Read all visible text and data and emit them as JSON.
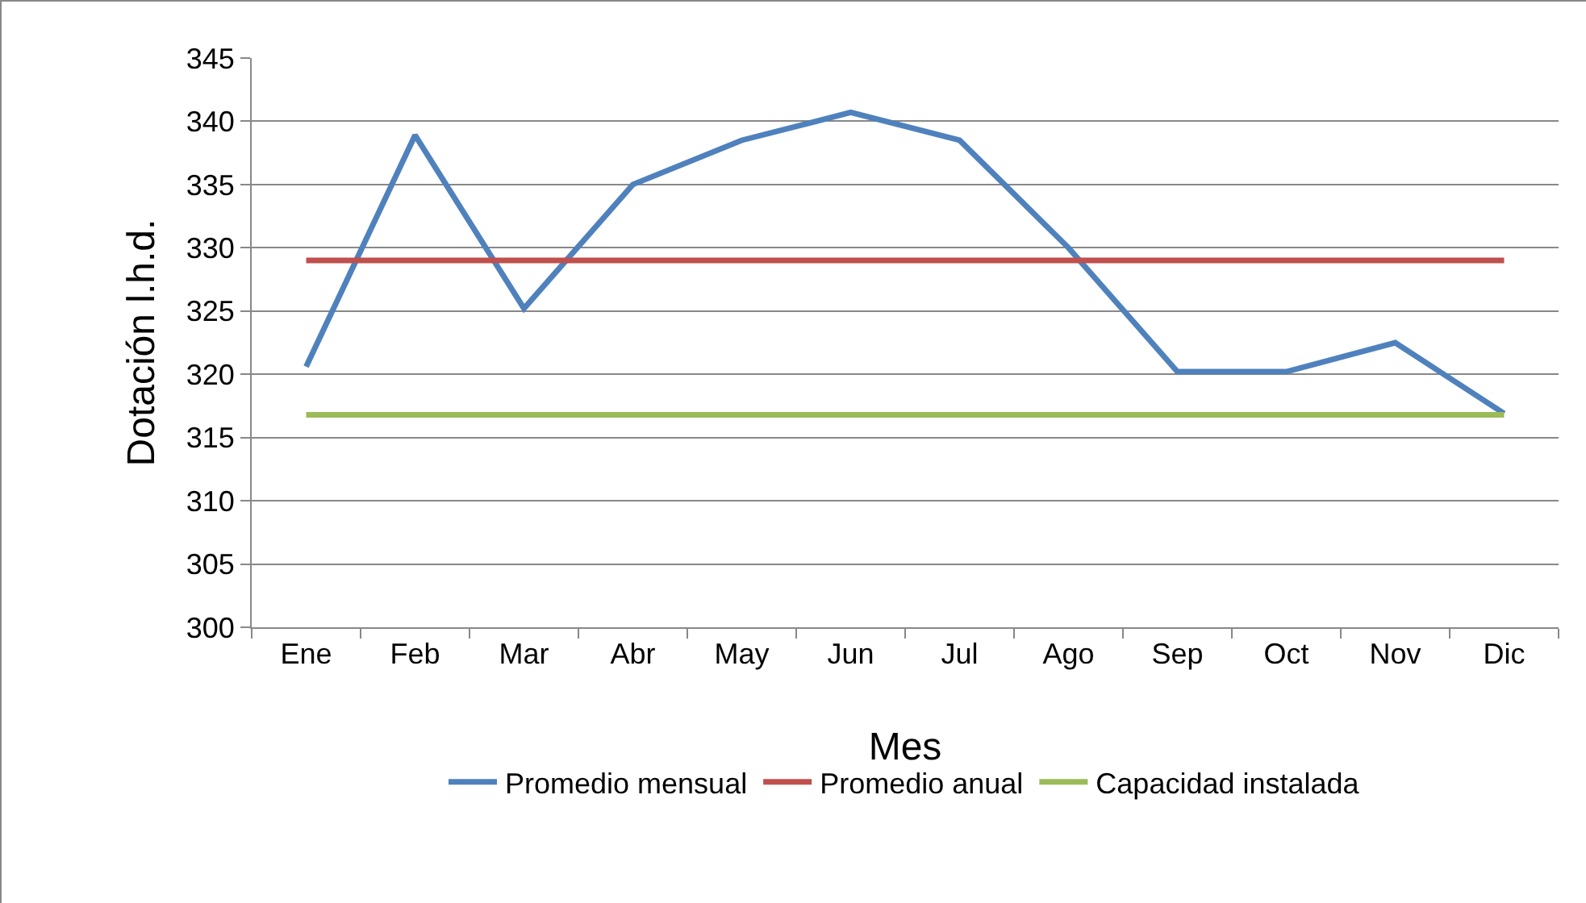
{
  "chart_data": {
    "type": "line",
    "xlabel": "Mes",
    "ylabel": "Dotación l.h.d.",
    "categories": [
      "Ene",
      "Feb",
      "Mar",
      "Abr",
      "May",
      "Jun",
      "Jul",
      "Ago",
      "Sep",
      "Oct",
      "Nov",
      "Dic"
    ],
    "series": [
      {
        "name": "Promedio mensual",
        "color": "#4f81bd",
        "values": [
          320.6,
          338.9,
          325.2,
          335.0,
          338.5,
          340.7,
          338.5,
          330.0,
          320.2,
          320.2,
          322.5,
          316.9
        ]
      },
      {
        "name": "Promedio anual",
        "color": "#c0504d",
        "values": [
          329,
          329,
          329,
          329,
          329,
          329,
          329,
          329,
          329,
          329,
          329,
          329
        ]
      },
      {
        "name": "Capacidad instalada",
        "color": "#9bbb59",
        "values": [
          316.8,
          316.8,
          316.8,
          316.8,
          316.8,
          316.8,
          316.8,
          316.8,
          316.8,
          316.8,
          316.8,
          316.8
        ]
      }
    ],
    "ylim": [
      300,
      345
    ],
    "yticks": [
      300,
      305,
      310,
      315,
      320,
      325,
      330,
      335,
      340,
      345
    ],
    "grid": "y",
    "legend": "bottom",
    "marker": "none",
    "line_style": "solid"
  }
}
